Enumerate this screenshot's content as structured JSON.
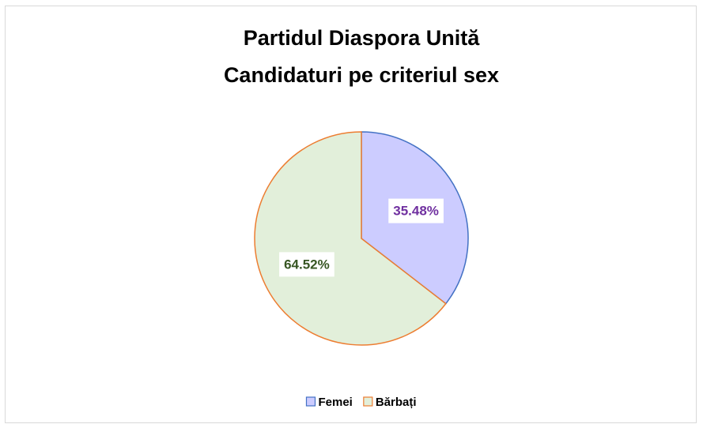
{
  "chart_data": {
    "type": "pie",
    "title": "Partidul Diaspora Unită",
    "subtitle": "Candidaturi pe criteriul sex",
    "categories": [
      "Femei",
      "Bărbați"
    ],
    "values": [
      35.48,
      64.52
    ],
    "value_labels": [
      "35.48%",
      "64.52%"
    ],
    "colors": [
      "#ccccff",
      "#e2efda"
    ],
    "edge_colors": [
      "#4472c4",
      "#ed7d31"
    ],
    "label_colors": [
      "#7030a0",
      "#375623"
    ],
    "legend": "bottom"
  }
}
